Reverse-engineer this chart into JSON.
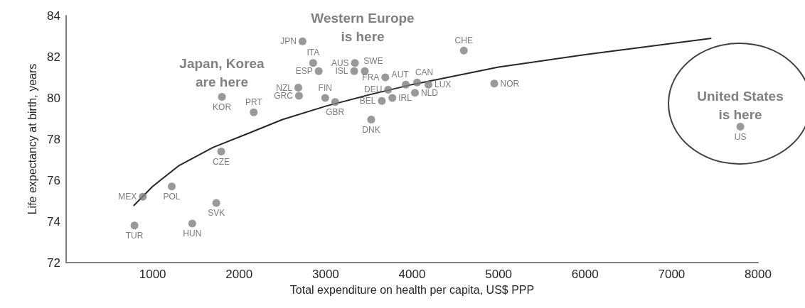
{
  "chart_data": {
    "type": "scatter",
    "xlabel": "Total expenditure on health per capita, US$ PPP",
    "ylabel": "Life expectancy at birth, years",
    "xlim": [
      0,
      8000
    ],
    "xticks": [
      1000,
      2000,
      3000,
      4000,
      5000,
      6000,
      7000,
      8000
    ],
    "ylim": [
      72,
      84
    ],
    "yticks": [
      72,
      74,
      76,
      78,
      80,
      82,
      84
    ],
    "annotations": [
      "Western Europe\nis here",
      "Japan, Korea\nare here",
      "United States\nis here"
    ],
    "series": [
      {
        "marker": "circle",
        "color": "#808080",
        "x": [
          790,
          886,
          1221,
          1458,
          1736,
          1793,
          1801,
          2169,
          2692,
          2684,
          2733,
          2856,
          2920,
          2995,
          3110,
          3339,
          3330,
          3453,
          3690,
          3723,
          3650,
          3772,
          3527,
          3927,
          4058,
          4189,
          4033,
          4598,
          4950,
          7795
        ],
        "values": [
          73.8,
          75.2,
          75.7,
          73.9,
          74.9,
          77.4,
          80.05,
          79.3,
          80.1,
          80.5,
          82.75,
          81.7,
          81.3,
          80.0,
          79.8,
          81.7,
          81.3,
          81.3,
          81.0,
          80.4,
          79.85,
          80.0,
          78.95,
          80.65,
          80.75,
          80.65,
          80.25,
          82.3,
          80.7,
          78.6
        ],
        "value_labels": [
          "TUR",
          "MEX",
          "POL",
          "HUN",
          "SVK",
          "CZE",
          "KOR",
          "PRT",
          "GRC",
          "NZL",
          "JPN",
          "ITA",
          "ESP",
          "FIN",
          "GBR",
          "AUS",
          "ISL",
          "SWE",
          "FRA",
          "DEU",
          "BEL",
          "IRL",
          "DNK",
          "AUT",
          "CAN",
          "LUX",
          "NLD",
          "CHE",
          "NOR",
          "US"
        ]
      },
      {
        "type": "line",
        "color": "#262626",
        "x": [
          779,
          1000,
          1300,
          1700,
          2120,
          2500,
          3000,
          3500,
          4000,
          5000,
          6000,
          7000,
          7460
        ],
        "values": [
          74.76,
          75.7,
          76.7,
          77.6,
          78.3,
          78.95,
          79.6,
          80.15,
          80.65,
          81.5,
          82.1,
          82.65,
          82.9
        ]
      }
    ]
  }
}
